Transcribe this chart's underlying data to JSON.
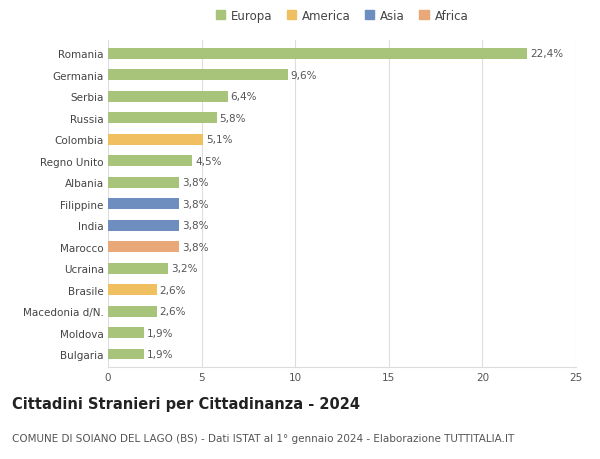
{
  "countries": [
    "Romania",
    "Germania",
    "Serbia",
    "Russia",
    "Colombia",
    "Regno Unito",
    "Albania",
    "Filippine",
    "India",
    "Marocco",
    "Ucraina",
    "Brasile",
    "Macedonia d/N.",
    "Moldova",
    "Bulgaria"
  ],
  "values": [
    22.4,
    9.6,
    6.4,
    5.8,
    5.1,
    4.5,
    3.8,
    3.8,
    3.8,
    3.8,
    3.2,
    2.6,
    2.6,
    1.9,
    1.9
  ],
  "labels": [
    "22,4%",
    "9,6%",
    "6,4%",
    "5,8%",
    "5,1%",
    "4,5%",
    "3,8%",
    "3,8%",
    "3,8%",
    "3,8%",
    "3,2%",
    "2,6%",
    "2,6%",
    "1,9%",
    "1,9%"
  ],
  "continent": [
    "Europa",
    "Europa",
    "Europa",
    "Europa",
    "America",
    "Europa",
    "Europa",
    "Asia",
    "Asia",
    "Africa",
    "Europa",
    "America",
    "Europa",
    "Europa",
    "Europa"
  ],
  "colors": {
    "Europa": "#a8c47a",
    "America": "#f0c060",
    "Asia": "#6e8ec0",
    "Africa": "#e8a878"
  },
  "legend_order": [
    "Europa",
    "America",
    "Asia",
    "Africa"
  ],
  "title": "Cittadini Stranieri per Cittadinanza - 2024",
  "subtitle": "COMUNE DI SOIANO DEL LAGO (BS) - Dati ISTAT al 1° gennaio 2024 - Elaborazione TUTTITALIA.IT",
  "xlim": [
    0,
    25
  ],
  "xticks": [
    0,
    5,
    10,
    15,
    20,
    25
  ],
  "background_color": "#ffffff",
  "grid_color": "#dddddd",
  "bar_height": 0.5,
  "label_fontsize": 7.5,
  "title_fontsize": 10.5,
  "subtitle_fontsize": 7.5,
  "legend_fontsize": 8.5,
  "tick_fontsize": 7.5
}
